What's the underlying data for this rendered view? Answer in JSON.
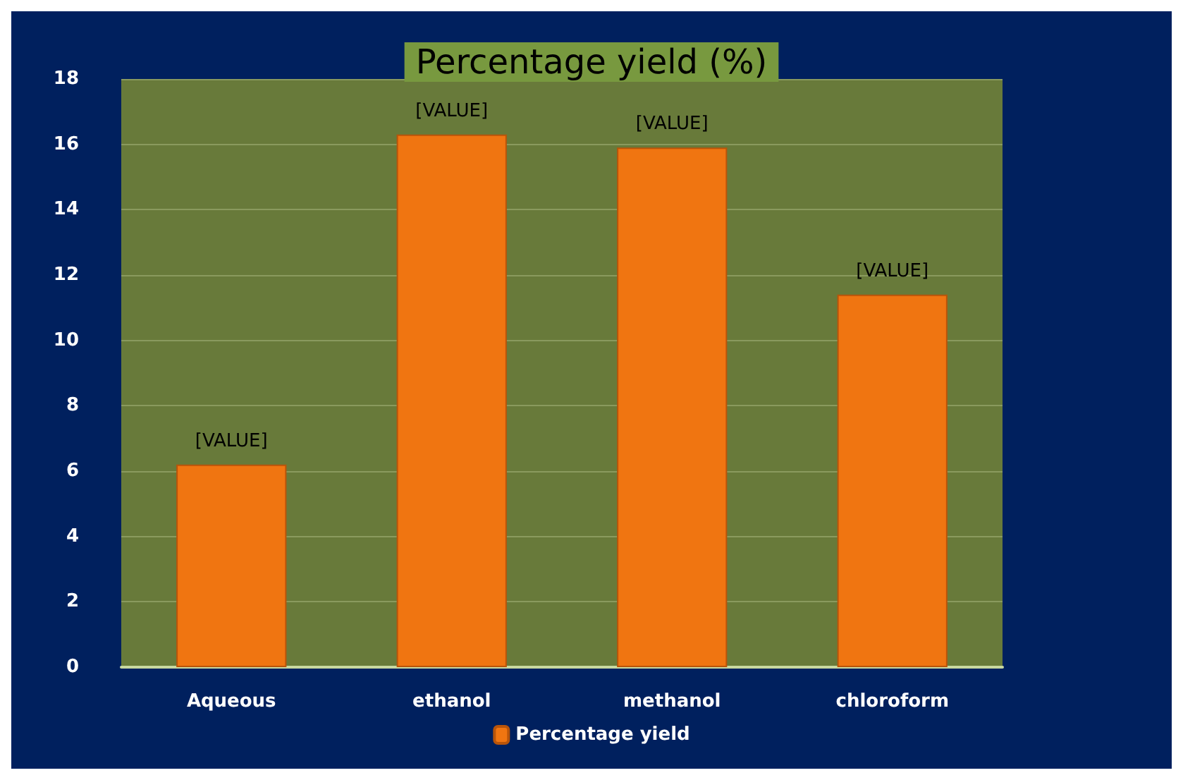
{
  "chart_data": {
    "type": "bar",
    "title": "Percentage yield (%)",
    "categories": [
      "Aqueous",
      "ethanol",
      "methanol",
      "chloroform"
    ],
    "series": [
      {
        "name": "Percentage yield",
        "color": "#f07511",
        "values": [
          6.2,
          16.3,
          15.9,
          11.4
        ],
        "value_labels": [
          "[VALUE]",
          "[VALUE]",
          "[VALUE]",
          "[VALUE]"
        ]
      }
    ],
    "ylim": [
      0,
      18
    ],
    "yticks": [
      0,
      2,
      4,
      6,
      8,
      10,
      12,
      14,
      16,
      18
    ],
    "grid": "y",
    "legend": "bottom"
  }
}
